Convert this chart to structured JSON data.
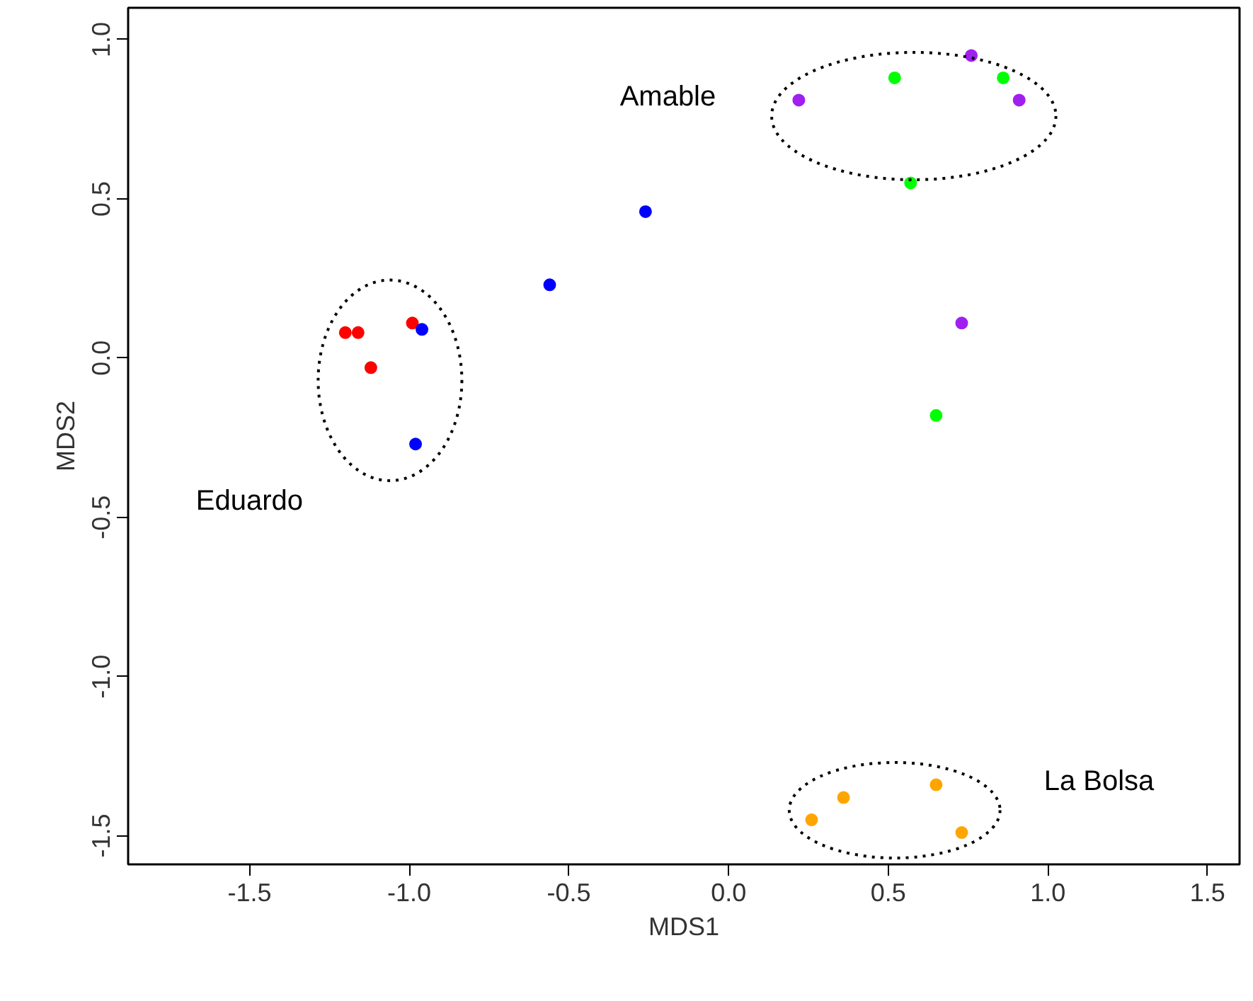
{
  "chart_data": {
    "type": "scatter",
    "xlabel": "MDS1",
    "ylabel": "MDS2",
    "xlim": [
      -1.88,
      1.6
    ],
    "ylim": [
      -1.59,
      1.1
    ],
    "xticks": [
      -1.5,
      {
        "value": -1.0,
        "label": "-1.0"
      },
      -0.5,
      {
        "value": 0,
        "label": "0.0"
      },
      0.5,
      {
        "value": 1.0,
        "label": "1.0"
      },
      1.5
    ],
    "yticks": [
      -1.5,
      {
        "value": -1.0,
        "label": "-1.0"
      },
      -0.5,
      {
        "value": 0,
        "label": "0.0"
      },
      0.5,
      {
        "value": 1.0,
        "label": "1.0"
      }
    ],
    "grid": false,
    "marker": "circle",
    "series": [
      {
        "color": "#ff0000",
        "x": [
          -1.2,
          -1.16,
          -1.12,
          -0.99
        ],
        "values": [
          0.08,
          0.08,
          -0.03,
          0.11
        ]
      },
      {
        "color": "#0000ff",
        "x": [
          -0.96,
          -0.98,
          -0.56,
          -0.26
        ],
        "values": [
          0.09,
          -0.27,
          0.23,
          0.46
        ]
      },
      {
        "color": "#a020f0",
        "x": [
          0.22,
          0.76,
          0.91,
          0.73
        ],
        "values": [
          0.81,
          0.95,
          0.81,
          0.11
        ]
      },
      {
        "color": "#00ff00",
        "x": [
          0.52,
          0.86,
          0.57,
          0.65
        ],
        "values": [
          0.88,
          0.88,
          0.55,
          -0.18
        ]
      },
      {
        "color": "#ffa500",
        "x": [
          0.26,
          0.36,
          0.65,
          0.73
        ],
        "values": [
          -1.45,
          -1.38,
          -1.34,
          -1.49
        ]
      }
    ],
    "annotations": [
      "Amable",
      "Eduardo",
      "La Bolsa"
    ]
  }
}
